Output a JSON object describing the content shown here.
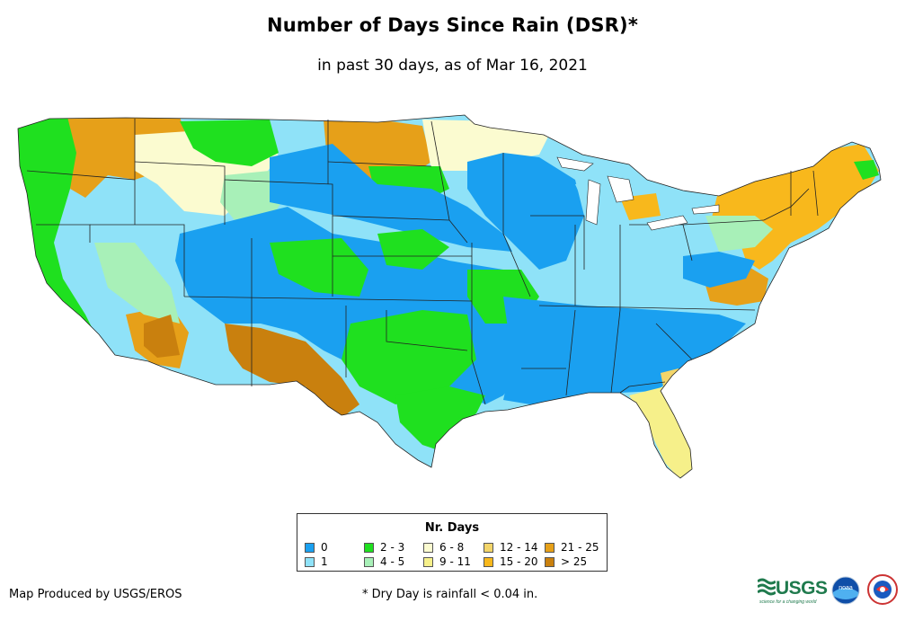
{
  "header": {
    "title": "Number of Days Since Rain (DSR)*",
    "subtitle": "in past 30 days, as of Mar 16, 2021"
  },
  "legend": {
    "title": "Nr. Days",
    "items": [
      {
        "label": "0",
        "color": "#1aa0f0"
      },
      {
        "label": "1",
        "color": "#8fe2f8"
      },
      {
        "label": "2 - 3",
        "color": "#1fe01f"
      },
      {
        "label": "4 - 5",
        "color": "#a8f0b8"
      },
      {
        "label": "6 - 8",
        "color": "#fbfbd0"
      },
      {
        "label": "9 - 11",
        "color": "#f6f08a"
      },
      {
        "label": "12 - 14",
        "color": "#f3d56a"
      },
      {
        "label": "15 - 20",
        "color": "#f8b81c"
      },
      {
        "label": "21 - 25",
        "color": "#e6a019"
      },
      {
        "label": "> 25",
        "color": "#c9800e"
      }
    ]
  },
  "footer": {
    "credit": "Map Produced by USGS/EROS",
    "footnote": "* Dry Day is rainfall < 0.04 in.",
    "logos": {
      "usgs": "USGS",
      "usgs_tagline": "science for a changing world",
      "noaa": "noaa"
    }
  }
}
